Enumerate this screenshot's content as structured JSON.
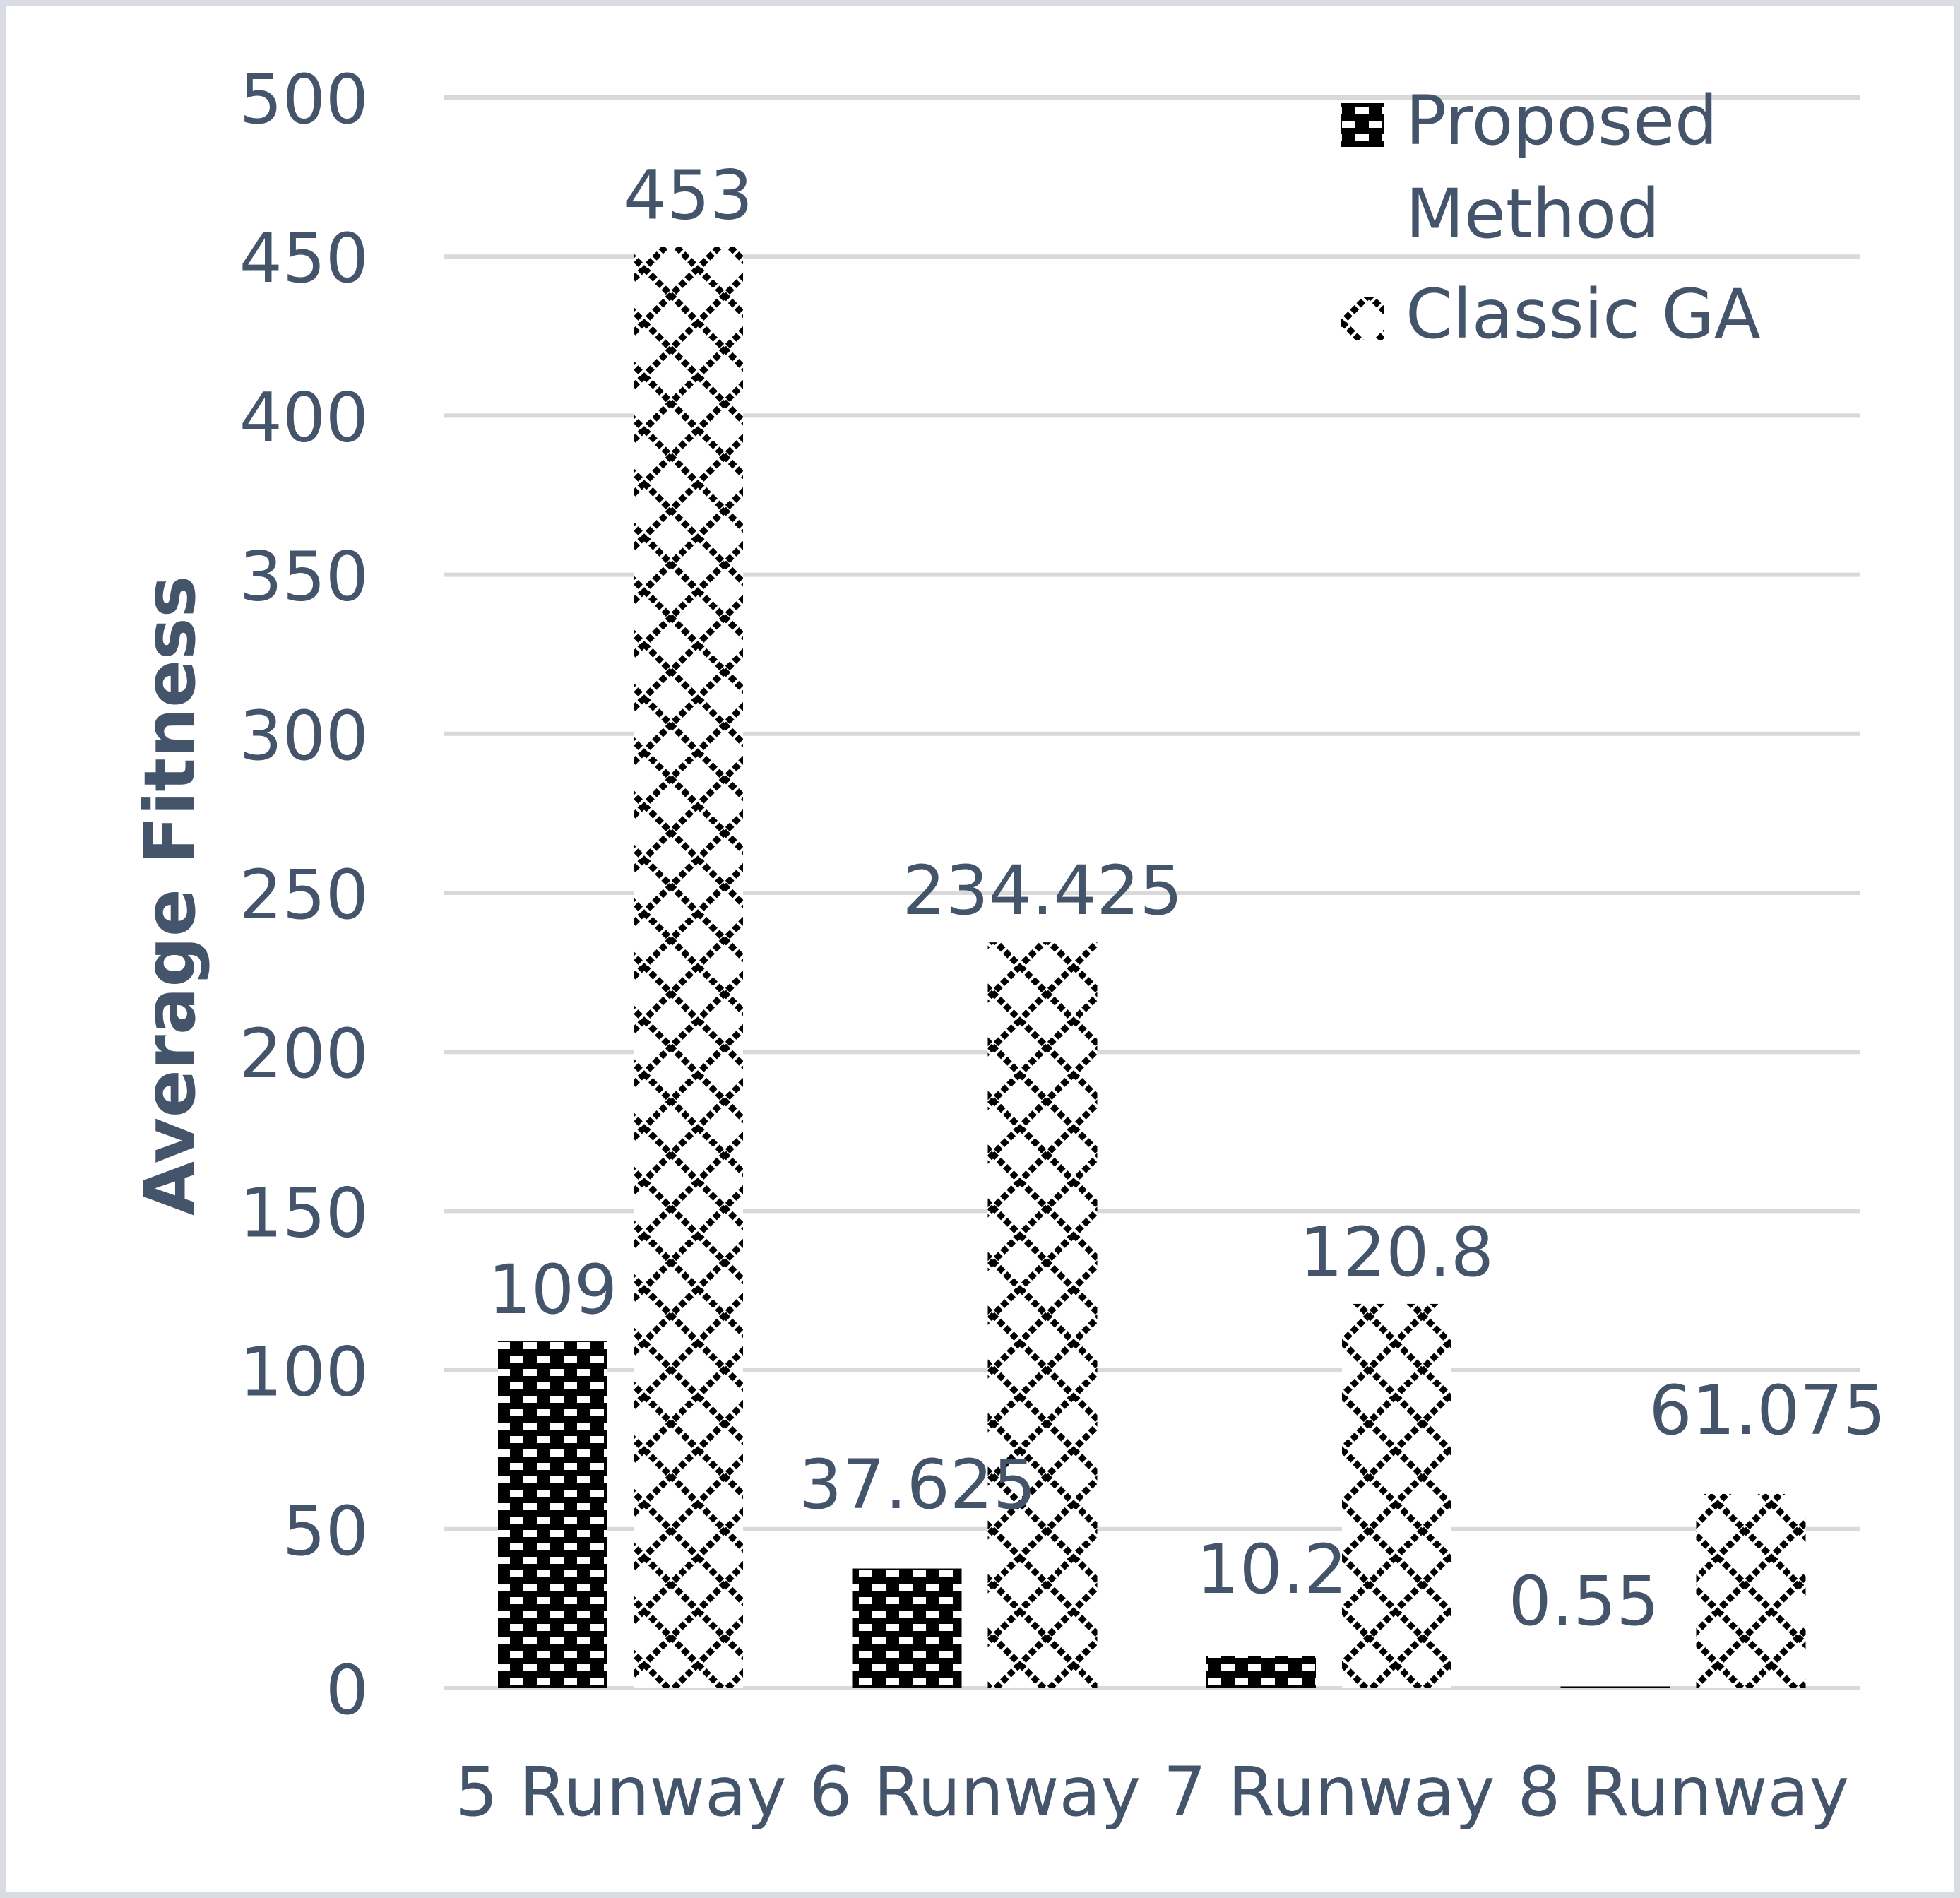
{
  "chart_data": {
    "type": "bar",
    "title": "",
    "xlabel": "",
    "ylabel": "Average Fitness",
    "ylim": [
      0,
      500
    ],
    "yticks": [
      0,
      50,
      100,
      150,
      200,
      250,
      300,
      350,
      400,
      450,
      500
    ],
    "grid": true,
    "legend_position": "top-right",
    "categories": [
      "5 Runway",
      "6 Runway",
      "7 Runway",
      "8 Runway"
    ],
    "series": [
      {
        "name": "Proposed Method",
        "name_lines": [
          "Proposed",
          "Method"
        ],
        "pattern": "brick",
        "values": [
          109,
          37.625,
          10.2,
          0.55
        ],
        "labels": [
          "109",
          "37.625",
          "10.2",
          "0.55"
        ]
      },
      {
        "name": "Classic GA",
        "name_lines": [
          "Classic GA"
        ],
        "pattern": "lattice",
        "values": [
          453,
          234.425,
          120.8,
          61.075
        ],
        "labels": [
          "453",
          "234.425",
          "120.8",
          "61.075"
        ]
      }
    ],
    "colors": {
      "text": "#44546a",
      "grid": "#d9d9d9",
      "frame": "#d9dde3",
      "bar": "#000000"
    }
  }
}
